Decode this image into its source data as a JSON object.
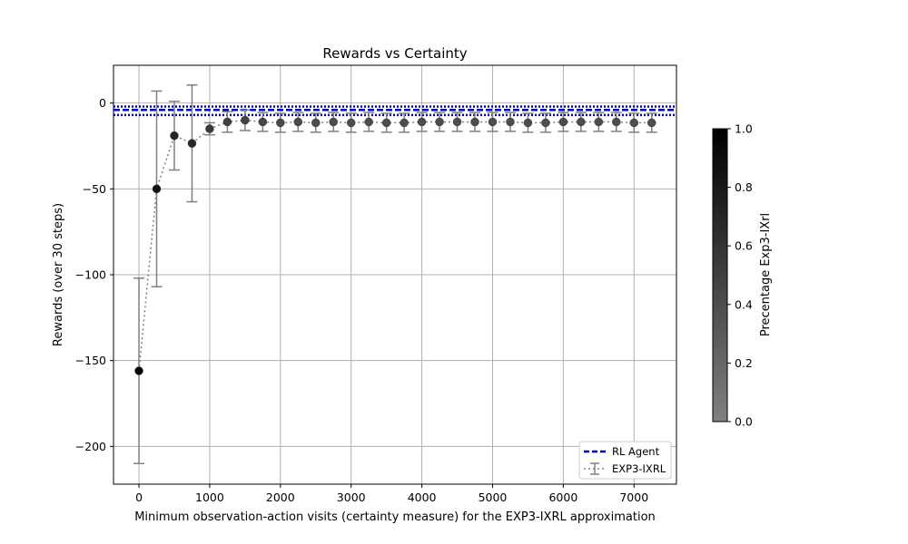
{
  "chart_data": {
    "type": "scatter",
    "title": "Rewards vs Certainty",
    "xlabel": "Minimum observation-action visits (certainty measure) for the EXP3-IXRL approximation",
    "ylabel": "Rewards (over 30 steps)",
    "xlim": [
      -360,
      7600
    ],
    "ylim": [
      -222,
      22
    ],
    "xticks": [
      0,
      1000,
      2000,
      3000,
      4000,
      5000,
      6000,
      7000
    ],
    "yticks": [
      0,
      -50,
      -100,
      -150,
      -200
    ],
    "xtick_labels": [
      "0",
      "1000",
      "2000",
      "3000",
      "4000",
      "5000",
      "6000",
      "7000"
    ],
    "ytick_labels": [
      "0",
      "−50",
      "−100",
      "−150",
      "−200"
    ],
    "grid": true,
    "legend_position": "lower-right",
    "rl_agent": {
      "name": "RL Agent",
      "mean": -4,
      "band": [
        -2,
        -7
      ],
      "color": "#0000cc"
    },
    "series": [
      {
        "name": "EXP3-IXRL",
        "color": "#808080",
        "x": [
          0,
          250,
          500,
          750,
          1000,
          1250,
          1500,
          1750,
          2000,
          2250,
          2500,
          2750,
          3000,
          3250,
          3500,
          3750,
          4000,
          4250,
          4500,
          4750,
          5000,
          5250,
          5500,
          5750,
          6000,
          6250,
          6500,
          6750,
          7000,
          7250
        ],
        "y": [
          -156,
          -50,
          -19,
          -23.5,
          -15,
          -11,
          -10,
          -11,
          -11.5,
          -11,
          -11.5,
          -11,
          -11.5,
          -11,
          -11.5,
          -11.5,
          -11,
          -11,
          -11,
          -11,
          -11,
          -11,
          -11.5,
          -11.5,
          -11,
          -11,
          -11,
          -11,
          -11.5,
          -11.5
        ],
        "err": [
          54,
          57,
          20,
          34,
          3.5,
          6,
          6,
          5.5,
          5.5,
          5.5,
          5.5,
          5.5,
          5.5,
          5.5,
          5.5,
          5.5,
          5.5,
          5.5,
          5.5,
          5.5,
          5.5,
          5.5,
          5.5,
          5.5,
          5.5,
          5.5,
          5.5,
          5.5,
          5.5,
          5.5
        ],
        "pct": [
          1.0,
          0.85,
          0.72,
          0.68,
          0.55,
          0.5,
          0.48,
          0.45,
          0.42,
          0.42,
          0.4,
          0.4,
          0.4,
          0.4,
          0.4,
          0.4,
          0.4,
          0.4,
          0.4,
          0.4,
          0.4,
          0.4,
          0.4,
          0.4,
          0.4,
          0.4,
          0.4,
          0.4,
          0.4,
          0.4
        ]
      }
    ],
    "colorbar": {
      "label": "Precentage Exp3-IXrl",
      "range": [
        0.0,
        1.0
      ],
      "ticks": [
        0.0,
        0.2,
        0.4,
        0.6,
        0.8,
        1.0
      ],
      "tick_labels": [
        "0.0",
        "0.2",
        "0.4",
        "0.6",
        "0.8",
        "1.0"
      ],
      "colormap": [
        "#808080",
        "#000000"
      ]
    }
  }
}
